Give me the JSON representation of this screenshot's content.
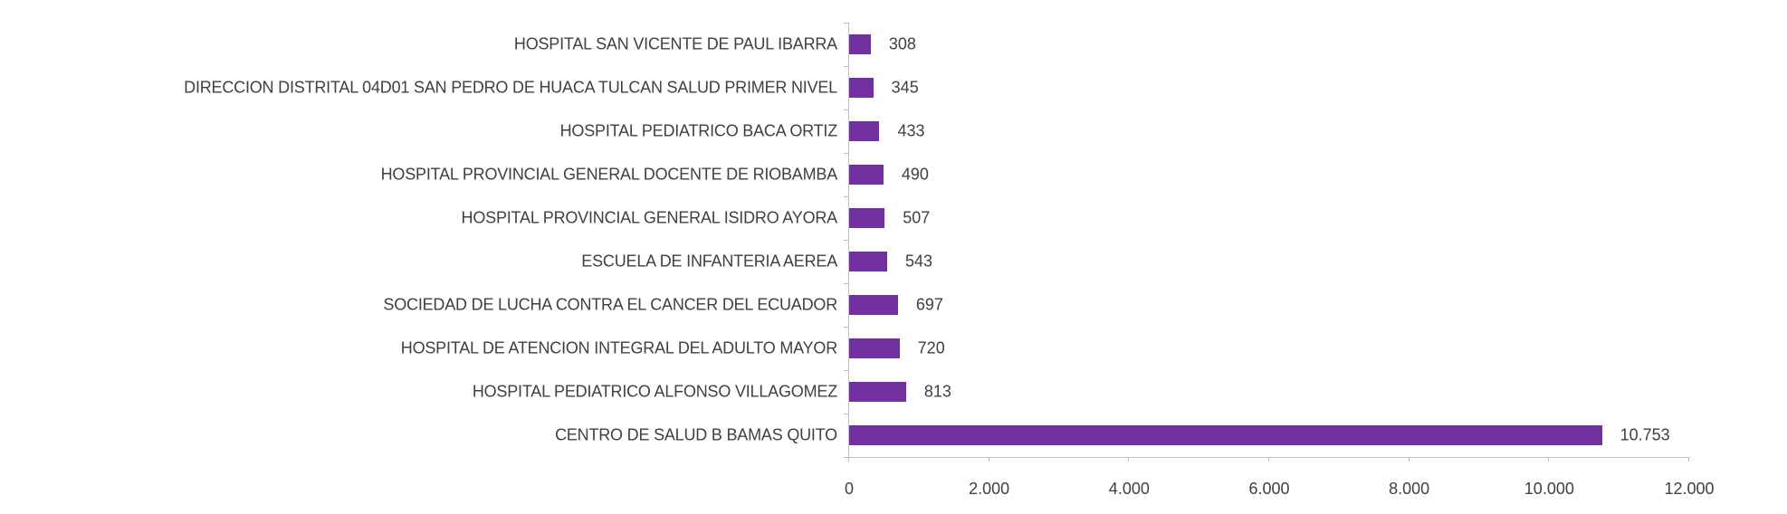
{
  "chart_data": {
    "type": "bar",
    "orientation": "horizontal",
    "title": "",
    "xlabel": "",
    "ylabel": "",
    "xlim": [
      0,
      12000
    ],
    "grid": false,
    "legend": null,
    "bar_color": "#7030A0",
    "categories": [
      "HOSPITAL SAN VICENTE DE PAUL IBARRA",
      "DIRECCION DISTRITAL 04D01 SAN PEDRO DE HUACA TULCAN SALUD PRIMER NIVEL",
      "HOSPITAL PEDIATRICO BACA ORTIZ",
      "HOSPITAL PROVINCIAL GENERAL DOCENTE DE RIOBAMBA",
      "HOSPITAL PROVINCIAL GENERAL ISIDRO AYORA",
      "ESCUELA DE INFANTERIA AEREA",
      "SOCIEDAD DE LUCHA CONTRA EL CANCER DEL ECUADOR",
      "HOSPITAL DE ATENCION INTEGRAL DEL ADULTO MAYOR",
      "HOSPITAL PEDIATRICO ALFONSO VILLAGOMEZ",
      "CENTRO DE SALUD B BAMAS QUITO"
    ],
    "values": [
      308,
      345,
      433,
      490,
      507,
      543,
      697,
      720,
      813,
      10753
    ],
    "value_labels": [
      "308",
      "345",
      "433",
      "490",
      "507",
      "543",
      "697",
      "720",
      "813",
      "10.753"
    ],
    "x_ticks": [
      0,
      2000,
      4000,
      6000,
      8000,
      10000,
      12000
    ],
    "x_tick_labels": [
      "0",
      "2.000",
      "4.000",
      "6.000",
      "8.000",
      "10.000",
      "12.000"
    ]
  }
}
